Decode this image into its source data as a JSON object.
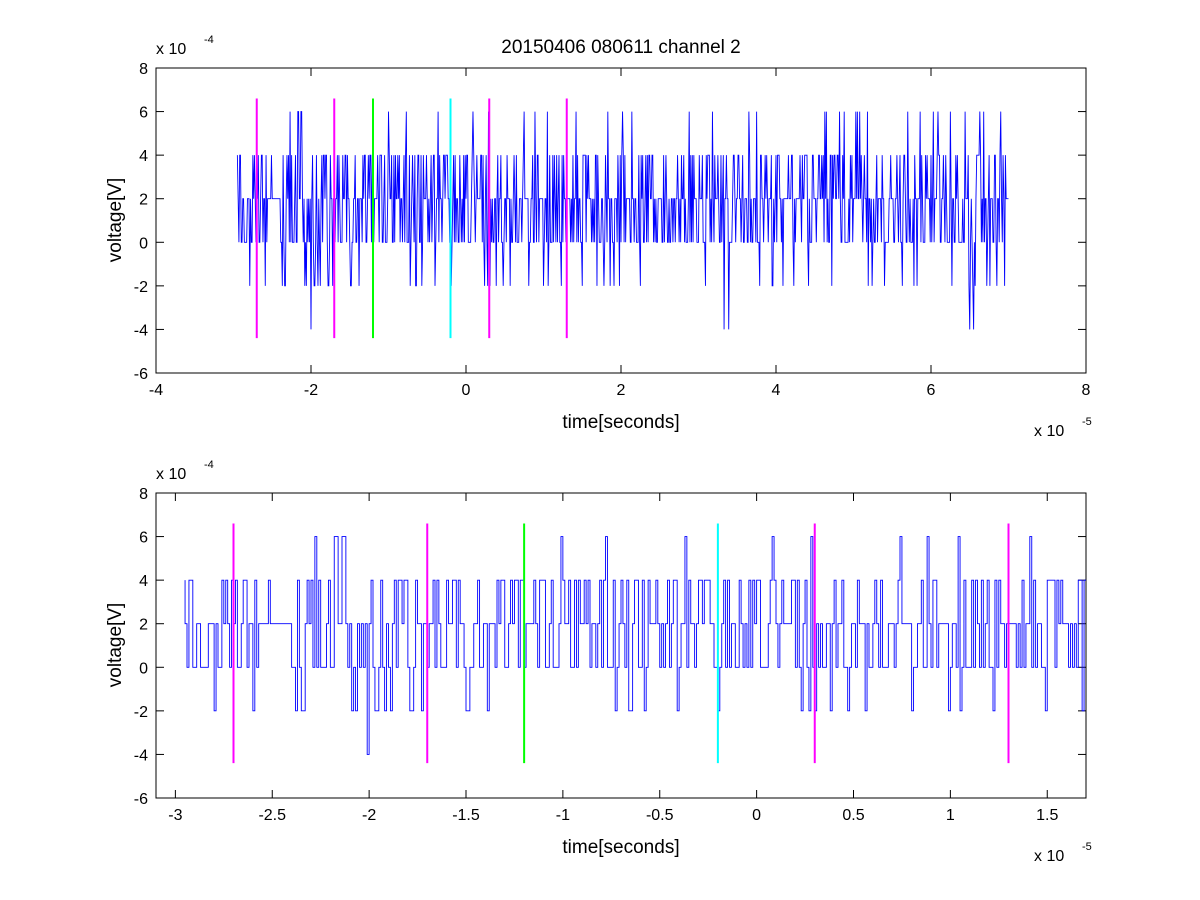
{
  "chart_data": [
    {
      "type": "line",
      "title": "20150406 080611 channel 2",
      "xlabel": "time[seconds]",
      "ylabel": "voltage[V]",
      "x_multiplier": {
        "base": "x 10",
        "exponent": "-5"
      },
      "y_multiplier": {
        "base": "x 10",
        "exponent": "-4"
      },
      "xlim": [
        -4,
        8
      ],
      "ylim": [
        -6,
        8
      ],
      "xticks": [
        "-4",
        "-2",
        "0",
        "2",
        "4",
        "6",
        "8"
      ],
      "yticks": [
        "-6",
        "-4",
        "-2",
        "0",
        "2",
        "4",
        "6",
        "8"
      ],
      "grid": false,
      "signal": {
        "color": "#0000ff",
        "x_start": -2.95,
        "x_end": 7.0,
        "step": 0.01,
        "seed": 20150406,
        "levels": [
          -4,
          -2,
          0,
          2,
          4,
          6
        ],
        "level_weights": [
          0.004,
          0.06,
          0.3,
          0.38,
          0.22,
          0.036
        ]
      },
      "markers": [
        {
          "x": -2.7,
          "color": "#ff00ff"
        },
        {
          "x": -1.7,
          "color": "#ff00ff"
        },
        {
          "x": -1.2,
          "color": "#00ff00"
        },
        {
          "x": -0.2,
          "color": "#00ffff"
        },
        {
          "x": 0.3,
          "color": "#ff00ff"
        },
        {
          "x": 1.3,
          "color": "#ff00ff"
        }
      ],
      "marker_range": [
        -4.4,
        6.6
      ]
    },
    {
      "type": "line",
      "title": "",
      "xlabel": "time[seconds]",
      "ylabel": "voltage[V]",
      "x_multiplier": {
        "base": "x 10",
        "exponent": "-5"
      },
      "y_multiplier": {
        "base": "x 10",
        "exponent": "-4"
      },
      "xlim": [
        -3.1,
        1.7
      ],
      "ylim": [
        -6,
        8
      ],
      "xticks": [
        "-3",
        "-2.5",
        "-2",
        "-1.5",
        "-1",
        "-0.5",
        "0",
        "0.5",
        "1",
        "1.5"
      ],
      "yticks": [
        "-6",
        "-4",
        "-2",
        "0",
        "2",
        "4",
        "6",
        "8"
      ],
      "grid": false,
      "signal": {
        "color": "#0000ff",
        "x_start": -2.95,
        "x_end": 1.7,
        "step": 0.01,
        "seed": 20150406,
        "levels": [
          -4,
          -2,
          0,
          2,
          4,
          6
        ],
        "level_weights": [
          0.004,
          0.06,
          0.3,
          0.38,
          0.22,
          0.036
        ]
      },
      "markers": [
        {
          "x": -2.7,
          "color": "#ff00ff"
        },
        {
          "x": -1.7,
          "color": "#ff00ff"
        },
        {
          "x": -1.2,
          "color": "#00ff00"
        },
        {
          "x": -0.2,
          "color": "#00ffff"
        },
        {
          "x": 0.3,
          "color": "#ff00ff"
        },
        {
          "x": 1.3,
          "color": "#ff00ff"
        }
      ],
      "marker_range": [
        -4.4,
        6.6
      ]
    }
  ]
}
